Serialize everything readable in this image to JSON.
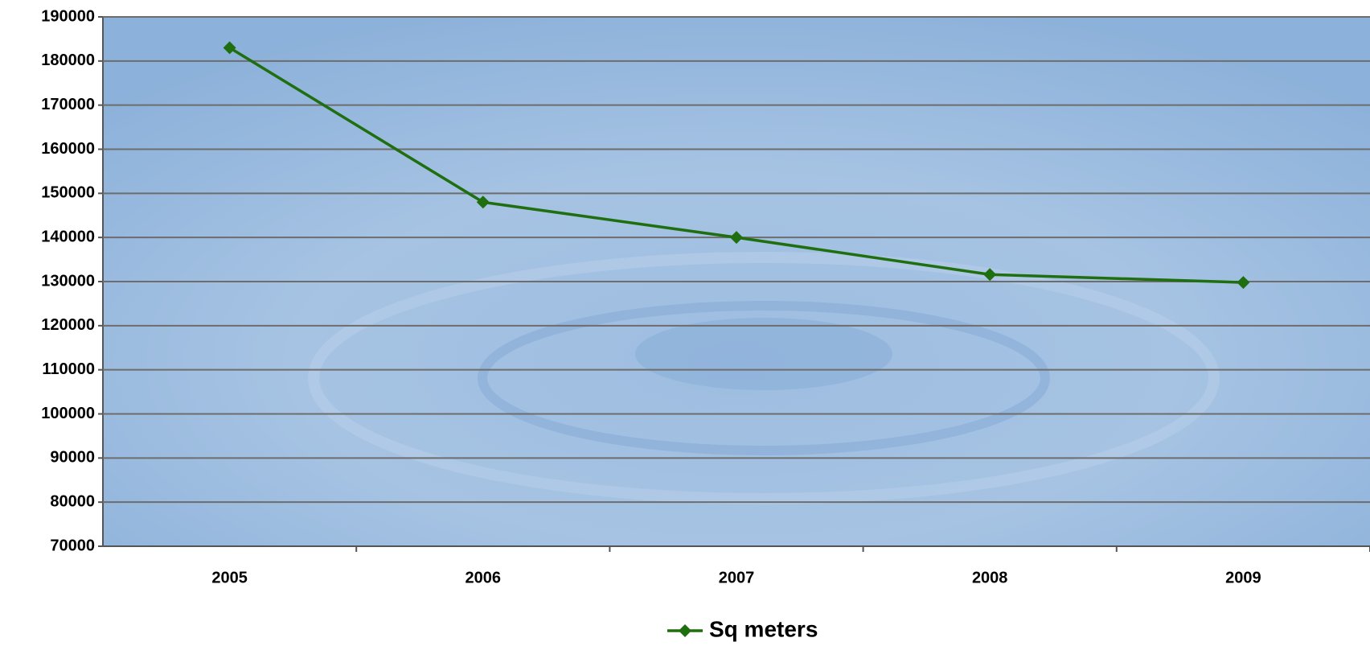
{
  "chart_data": {
    "type": "line",
    "categories": [
      "2005",
      "2006",
      "2007",
      "2008",
      "2009"
    ],
    "series": [
      {
        "name": "Sq meters",
        "color": "#1f6e0f",
        "values": [
          183000,
          148000,
          140000,
          131600,
          129800
        ]
      }
    ],
    "ylim": [
      70000,
      190000
    ],
    "yticks": [
      70000,
      80000,
      90000,
      100000,
      110000,
      120000,
      130000,
      140000,
      150000,
      160000,
      170000,
      180000,
      190000
    ],
    "grid": true,
    "legend": "bottom"
  }
}
